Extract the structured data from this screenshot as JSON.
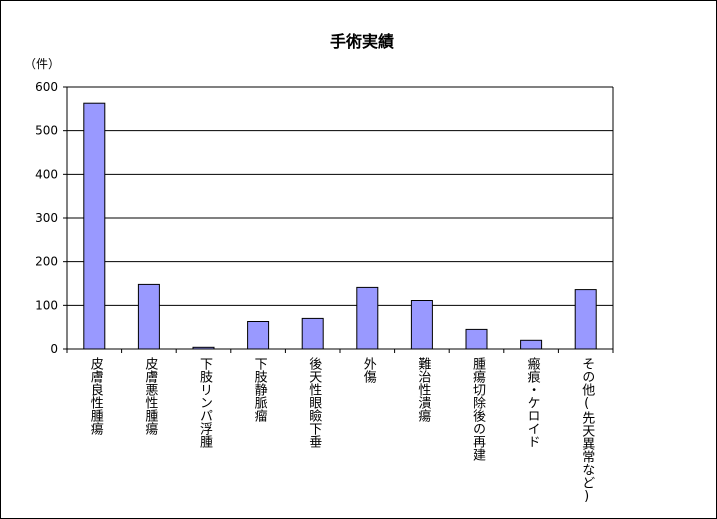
{
  "chart_data": {
    "type": "bar",
    "title": "手術実績",
    "ylabel": "（件）",
    "xlabel": "",
    "ylim": [
      0,
      600
    ],
    "yticks": [
      0,
      100,
      200,
      300,
      400,
      500,
      600
    ],
    "grid": true,
    "legend": "none",
    "bar_color": "#9999ff",
    "categories": [
      "皮膚良性腫瘍",
      "皮膚悪性腫瘍",
      "下肢リンパ浮腫",
      "下肢静脈瘤",
      "後天性眼瞼下垂",
      "外傷",
      "難治性潰瘍",
      "腫瘍切除後の再建",
      "瘢痕・ケロイド",
      "その他(先天異常など)"
    ],
    "values": [
      563,
      148,
      4,
      63,
      70,
      141,
      111,
      45,
      20,
      136
    ]
  }
}
